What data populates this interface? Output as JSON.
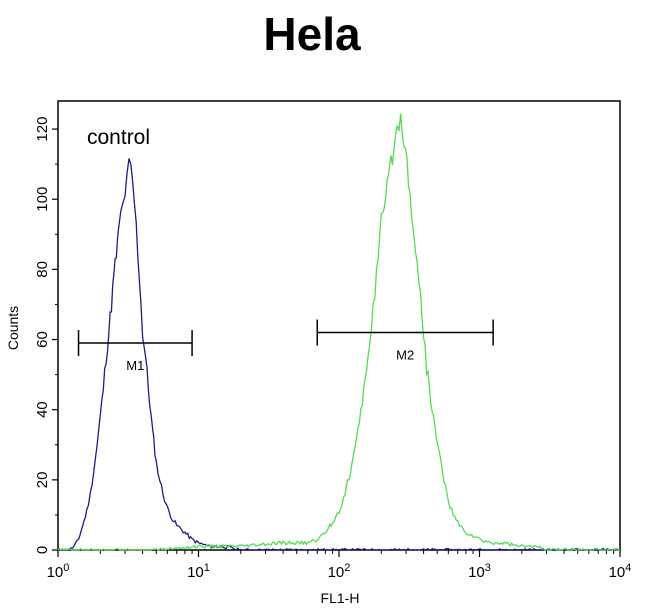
{
  "chart_data": {
    "type": "line",
    "title": "Hela",
    "xlabel": "FL1-H",
    "ylabel": "Counts",
    "x_scale": "log",
    "xlim": [
      1,
      10000
    ],
    "ylim": [
      0,
      128
    ],
    "x_ticks": [
      {
        "base": "10",
        "exp": "0",
        "value": 1
      },
      {
        "base": "10",
        "exp": "1",
        "value": 10
      },
      {
        "base": "10",
        "exp": "2",
        "value": 100
      },
      {
        "base": "10",
        "exp": "3",
        "value": 1000
      },
      {
        "base": "10",
        "exp": "4",
        "value": 10000
      }
    ],
    "y_ticks": [
      "0",
      "20",
      "40",
      "60",
      "80",
      "100",
      "120"
    ],
    "annotations": [
      {
        "text": "control"
      }
    ],
    "markers": [
      {
        "label": "M1",
        "x_start": 1.4,
        "x_end": 9,
        "y": 59
      },
      {
        "label": "M2",
        "x_start": 70,
        "x_end": 1250,
        "y": 62
      }
    ],
    "series": [
      {
        "color": "#1c1c8c",
        "points": [
          [
            1.0,
            0
          ],
          [
            1.2,
            0
          ],
          [
            1.3,
            1
          ],
          [
            1.4,
            3
          ],
          [
            1.5,
            7
          ],
          [
            1.6,
            11
          ],
          [
            1.7,
            16
          ],
          [
            1.8,
            23
          ],
          [
            1.9,
            30
          ],
          [
            2.0,
            38
          ],
          [
            2.1,
            46
          ],
          [
            2.2,
            55
          ],
          [
            2.3,
            62
          ],
          [
            2.4,
            70
          ],
          [
            2.5,
            78
          ],
          [
            2.6,
            84
          ],
          [
            2.7,
            90
          ],
          [
            2.8,
            96
          ],
          [
            2.9,
            98
          ],
          [
            3.0,
            102
          ],
          [
            3.1,
            105
          ],
          [
            3.2,
            110
          ],
          [
            3.3,
            108
          ],
          [
            3.4,
            104
          ],
          [
            3.5,
            99
          ],
          [
            3.6,
            92
          ],
          [
            3.7,
            85
          ],
          [
            3.8,
            78
          ],
          [
            3.9,
            70
          ],
          [
            4.0,
            62
          ],
          [
            4.2,
            55
          ],
          [
            4.4,
            46
          ],
          [
            4.6,
            38
          ],
          [
            4.8,
            31
          ],
          [
            5.0,
            25
          ],
          [
            5.3,
            20
          ],
          [
            5.6,
            16
          ],
          [
            6.0,
            12
          ],
          [
            6.5,
            9
          ],
          [
            7.0,
            7
          ],
          [
            8.0,
            5
          ],
          [
            9.0,
            3
          ],
          [
            10,
            2
          ],
          [
            12,
            1
          ],
          [
            15,
            1
          ],
          [
            20,
            0
          ],
          [
            30,
            0
          ],
          [
            100,
            0
          ],
          [
            10000,
            0
          ]
        ]
      },
      {
        "color": "#4fdf4f",
        "points": [
          [
            1.0,
            0
          ],
          [
            5,
            0
          ],
          [
            10,
            1
          ],
          [
            20,
            1
          ],
          [
            40,
            2
          ],
          [
            60,
            2
          ],
          [
            70,
            3
          ],
          [
            80,
            5
          ],
          [
            90,
            8
          ],
          [
            100,
            11
          ],
          [
            110,
            16
          ],
          [
            120,
            22
          ],
          [
            130,
            29
          ],
          [
            140,
            36
          ],
          [
            150,
            45
          ],
          [
            160,
            55
          ],
          [
            170,
            64
          ],
          [
            180,
            74
          ],
          [
            190,
            84
          ],
          [
            200,
            93
          ],
          [
            215,
            100
          ],
          [
            230,
            108
          ],
          [
            245,
            115
          ],
          [
            260,
            120
          ],
          [
            275,
            123
          ],
          [
            290,
            118
          ],
          [
            305,
            110
          ],
          [
            320,
            101
          ],
          [
            340,
            92
          ],
          [
            360,
            82
          ],
          [
            380,
            72
          ],
          [
            400,
            62
          ],
          [
            420,
            52
          ],
          [
            450,
            43
          ],
          [
            480,
            35
          ],
          [
            520,
            27
          ],
          [
            560,
            20
          ],
          [
            600,
            14
          ],
          [
            650,
            10
          ],
          [
            720,
            7
          ],
          [
            800,
            5
          ],
          [
            900,
            4
          ],
          [
            1000,
            3
          ],
          [
            1200,
            2
          ],
          [
            1500,
            2
          ],
          [
            2000,
            1
          ],
          [
            2500,
            1
          ],
          [
            3000,
            0
          ],
          [
            10000,
            0
          ]
        ]
      }
    ]
  }
}
